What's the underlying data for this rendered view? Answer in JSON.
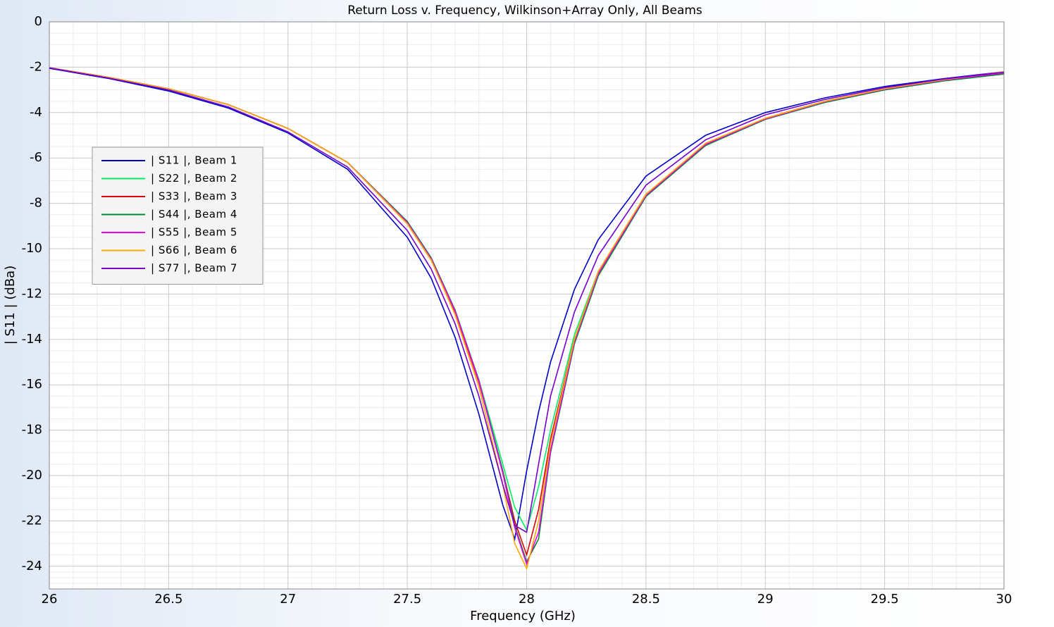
{
  "chart_data": {
    "type": "line",
    "title": "Return Loss  v. Frequency, Wilkinson+Array Only, All Beams",
    "x_label": "Frequency (GHz)",
    "y_label": "| S11 | (dBa)",
    "x": [
      26,
      26.25,
      26.5,
      26.75,
      27,
      27.25,
      27.5,
      27.6,
      27.7,
      27.8,
      27.9,
      27.95,
      28,
      28.05,
      28.1,
      28.2,
      28.3,
      28.5,
      28.75,
      29,
      29.25,
      29.5,
      29.75,
      30
    ],
    "series": [
      {
        "name": "| S11 |, Beam 1",
        "color": "#0000c8",
        "values": [
          -2.05,
          -2.5,
          -3.05,
          -3.8,
          -4.9,
          -6.5,
          -9.5,
          -11.3,
          -13.9,
          -17.3,
          -21.3,
          -22.8,
          -19.8,
          -17.2,
          -15.0,
          -11.8,
          -9.6,
          -6.8,
          -5.0,
          -4.0,
          -3.35,
          -2.85,
          -2.5,
          -2.2
        ]
      },
      {
        "name": "| S22 |, Beam 2",
        "color": "#00ee66",
        "values": [
          -2.02,
          -2.45,
          -2.95,
          -3.65,
          -4.7,
          -6.2,
          -8.9,
          -10.5,
          -12.8,
          -15.8,
          -19.5,
          -21.4,
          -22.4,
          -20.5,
          -18.0,
          -13.8,
          -11.0,
          -7.6,
          -5.4,
          -4.3,
          -3.55,
          -3.0,
          -2.6,
          -2.3
        ]
      },
      {
        "name": "| S33 |, Beam 3",
        "color": "#dd0000",
        "values": [
          -2.02,
          -2.45,
          -2.95,
          -3.65,
          -4.7,
          -6.2,
          -8.9,
          -10.5,
          -12.8,
          -15.9,
          -19.8,
          -22.0,
          -23.5,
          -21.5,
          -18.4,
          -14.0,
          -11.1,
          -7.6,
          -5.4,
          -4.25,
          -3.5,
          -2.95,
          -2.55,
          -2.25
        ]
      },
      {
        "name": "| S44 |, Beam 4",
        "color": "#008833",
        "values": [
          -2.02,
          -2.45,
          -2.95,
          -3.65,
          -4.7,
          -6.2,
          -8.8,
          -10.4,
          -12.7,
          -15.8,
          -19.8,
          -22.2,
          -23.8,
          -22.8,
          -19.0,
          -14.2,
          -11.2,
          -7.7,
          -5.45,
          -4.3,
          -3.55,
          -3.0,
          -2.6,
          -2.3
        ]
      },
      {
        "name": "| S55 |, Beam 5",
        "color": "#ee00ee",
        "values": [
          -2.02,
          -2.45,
          -2.95,
          -3.65,
          -4.7,
          -6.2,
          -8.85,
          -10.45,
          -12.75,
          -15.85,
          -19.9,
          -22.3,
          -23.9,
          -22.5,
          -18.9,
          -14.1,
          -11.1,
          -7.65,
          -5.4,
          -4.28,
          -3.52,
          -2.97,
          -2.57,
          -2.25
        ]
      },
      {
        "name": "| S66 |, Beam 6",
        "color": "#ffaa00",
        "values": [
          -2.02,
          -2.45,
          -2.95,
          -3.65,
          -4.7,
          -6.2,
          -8.9,
          -10.5,
          -12.9,
          -16.1,
          -20.4,
          -23.0,
          -24.1,
          -22.0,
          -18.6,
          -14.0,
          -11.0,
          -7.6,
          -5.35,
          -4.25,
          -3.5,
          -2.95,
          -2.55,
          -2.2
        ]
      },
      {
        "name": "| S77 |, Beam 7",
        "color": "#7700cc",
        "values": [
          -2.03,
          -2.48,
          -3.0,
          -3.75,
          -4.85,
          -6.4,
          -9.2,
          -10.9,
          -13.3,
          -16.5,
          -20.4,
          -22.2,
          -22.5,
          -19.5,
          -16.5,
          -12.8,
          -10.3,
          -7.2,
          -5.2,
          -4.1,
          -3.42,
          -2.9,
          -2.52,
          -2.22
        ]
      }
    ],
    "xlim": [
      26,
      30
    ],
    "xticks": [
      26,
      26.5,
      27,
      27.5,
      28,
      28.5,
      29,
      29.5,
      30
    ],
    "ylim": [
      -25,
      0
    ],
    "yticks": [
      0,
      -2,
      -4,
      -6,
      -8,
      -10,
      -12,
      -14,
      -16,
      -18,
      -20,
      -22,
      -24
    ],
    "grid": true,
    "legend": "upper left"
  }
}
